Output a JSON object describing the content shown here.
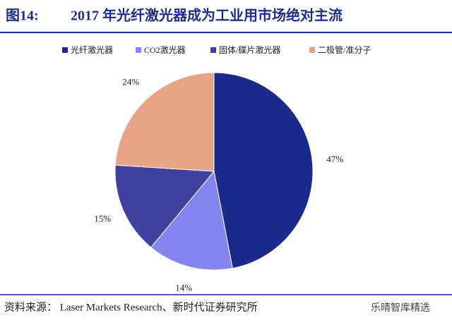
{
  "chart_data": {
    "type": "pie",
    "title_label": "图14:",
    "title": "2017 年光纤激光器成为工业用市场绝对主流",
    "categories": [
      "光纤激光器",
      "CO2激光器",
      "固体/碟片激光器",
      "二极管/准分子"
    ],
    "values": [
      47,
      14,
      15,
      24
    ],
    "value_labels": [
      "47%",
      "14%",
      "15%",
      "24%"
    ],
    "colors": [
      "#1c2a8c",
      "#8585f2",
      "#40409e",
      "#e8a487"
    ],
    "legend": "top",
    "source": "资料来源：  Laser Markets Research、新时代证券研究所",
    "watermark": "乐晴智库精选"
  }
}
